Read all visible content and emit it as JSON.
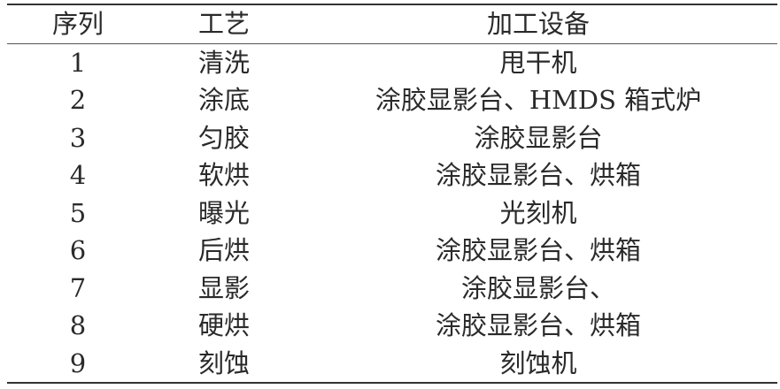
{
  "table": {
    "headers": [
      "序列",
      "工艺",
      "加工设备"
    ],
    "rows": [
      [
        "1",
        "清洗",
        "甩干机"
      ],
      [
        "2",
        "涂底",
        "涂胶显影台、HMDS 箱式炉"
      ],
      [
        "3",
        "匀胶",
        "涂胶显影台"
      ],
      [
        "4",
        "软烘",
        "涂胶显影台、烘箱"
      ],
      [
        "5",
        "曝光",
        "光刻机"
      ],
      [
        "6",
        "后烘",
        "涂胶显影台、烘箱"
      ],
      [
        "7",
        "显影",
        "涂胶显影台、"
      ],
      [
        "8",
        "硬烘",
        "涂胶显影台、烘箱"
      ],
      [
        "9",
        "刻蚀",
        "刻蚀机"
      ]
    ]
  }
}
